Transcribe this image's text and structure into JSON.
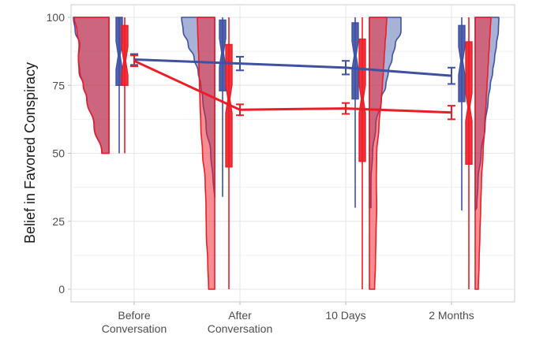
{
  "chart_data": {
    "type": "raincloud",
    "title": "",
    "xlabel": "",
    "ylabel": "Belief in Favored Conspiracy",
    "ylim": [
      0,
      100
    ],
    "yticks": [
      0,
      25,
      50,
      75,
      100
    ],
    "grid": true,
    "legend": "none",
    "categories": [
      {
        "line1": "Before",
        "line2": "Conversation"
      },
      {
        "line1": "After",
        "line2": "Conversation"
      },
      {
        "line1": "10 Days",
        "line2": ""
      },
      {
        "line1": "2 Months",
        "line2": ""
      }
    ],
    "series": [
      {
        "name": "blue-group",
        "color": "#3f51a3",
        "mean": [
          84.5,
          83,
          81.5,
          78.5
        ],
        "ci_low": [
          82.5,
          80.5,
          79,
          75.5
        ],
        "ci_high": [
          86.5,
          85.5,
          84,
          81.5
        ],
        "box": [
          {
            "whisker_low": 50,
            "q1": 75,
            "median": 86,
            "q3": 100,
            "whisker_high": 100
          },
          {
            "whisker_low": 34,
            "q1": 73,
            "median": 87,
            "q3": 99,
            "whisker_high": 100
          },
          {
            "whisker_low": 30,
            "q1": 70,
            "median": 86,
            "q3": 98,
            "whisker_high": 100
          },
          {
            "whisker_low": 29,
            "q1": 69,
            "median": 84,
            "q3": 97,
            "whisker_high": 100
          }
        ]
      },
      {
        "name": "red-group",
        "color": "#ee1c25",
        "mean": [
          84,
          66,
          66.5,
          65
        ],
        "ci_low": [
          82,
          64,
          64.5,
          62.5
        ],
        "ci_high": [
          86,
          68,
          68.5,
          67.5
        ],
        "box": [
          {
            "whisker_low": 50,
            "q1": 75,
            "median": 84,
            "q3": 97,
            "whisker_high": 100
          },
          {
            "whisker_low": 0,
            "q1": 45,
            "median": 70,
            "q3": 90,
            "whisker_high": 100
          },
          {
            "whisker_low": 0,
            "q1": 47,
            "median": 70,
            "q3": 92,
            "whisker_high": 100
          },
          {
            "whisker_low": 0,
            "q1": 46,
            "median": 67,
            "q3": 91,
            "whisker_high": 100
          }
        ]
      }
    ],
    "density": {
      "y_levels": [
        100,
        95,
        90,
        85,
        80,
        75,
        70,
        60,
        50,
        40,
        30,
        20,
        10,
        0
      ],
      "blue-group": [
        [
          1.0,
          0.95,
          0.82,
          0.86,
          0.82,
          0.72,
          0.62,
          0.42,
          0.2,
          0,
          0,
          0,
          0,
          0
        ],
        [
          1.0,
          0.95,
          0.8,
          0.62,
          0.5,
          0.42,
          0.36,
          0.26,
          0.12,
          0.05,
          0.02,
          0,
          0,
          0
        ],
        [
          1.0,
          1.0,
          0.82,
          0.72,
          0.6,
          0.52,
          0.38,
          0.2,
          0.1,
          0.05,
          0.03,
          0,
          0,
          0
        ],
        [
          1.0,
          0.98,
          0.9,
          0.82,
          0.74,
          0.64,
          0.55,
          0.42,
          0.25,
          0.12,
          0.05,
          0,
          0,
          0
        ]
      ],
      "red-group": [
        [
          1.0,
          0.92,
          0.86,
          0.88,
          0.86,
          0.74,
          0.64,
          0.42,
          0.2,
          0,
          0,
          0,
          0,
          0
        ],
        [
          1.0,
          0.98,
          0.95,
          0.92,
          0.9,
          0.88,
          0.85,
          0.8,
          0.7,
          0.55,
          0.5,
          0.48,
          0.4,
          0.35
        ],
        [
          1.0,
          0.96,
          0.9,
          0.85,
          0.8,
          0.75,
          0.68,
          0.55,
          0.42,
          0.4,
          0.42,
          0.38,
          0.35,
          0.3
        ],
        [
          1.0,
          0.95,
          0.9,
          0.85,
          0.8,
          0.75,
          0.7,
          0.6,
          0.5,
          0.4,
          0.35,
          0.3,
          0.25,
          0.2
        ]
      ]
    }
  }
}
